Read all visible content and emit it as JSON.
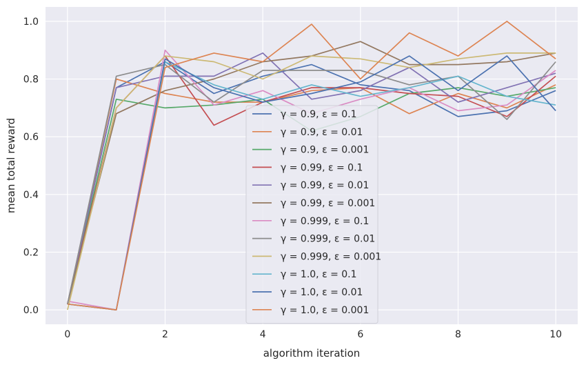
{
  "chart_data": {
    "type": "line",
    "title": "",
    "xlabel": "algorithm iteration",
    "ylabel": "mean total reward",
    "xlim": [
      -0.45,
      10.45
    ],
    "ylim": [
      -0.05,
      1.05
    ],
    "xticks": [
      0,
      2,
      4,
      6,
      8,
      10
    ],
    "yticks": [
      0.0,
      0.2,
      0.4,
      0.6,
      0.8,
      1.0
    ],
    "xtick_labels": [
      "0",
      "2",
      "4",
      "6",
      "8",
      "10"
    ],
    "ytick_labels": [
      "0.0",
      "0.2",
      "0.4",
      "0.6",
      "0.8",
      "1.0"
    ],
    "grid": true,
    "legend_position": "center",
    "x": [
      0,
      1,
      2,
      3,
      4,
      5,
      6,
      7,
      8,
      9,
      10
    ],
    "series": [
      {
        "name": "γ = 0.9, ε = 0.1",
        "color": "#4c72b0",
        "values": [
          0.02,
          0.77,
          0.86,
          0.75,
          0.81,
          0.85,
          0.78,
          0.76,
          0.67,
          0.69,
          0.76
        ]
      },
      {
        "name": "γ = 0.9, ε = 0.01",
        "color": "#dd8452",
        "values": [
          0.02,
          0.8,
          0.75,
          0.72,
          0.72,
          0.76,
          0.77,
          0.68,
          0.75,
          0.7,
          0.78
        ]
      },
      {
        "name": "γ = 0.9, ε = 0.001",
        "color": "#55a868",
        "values": [
          0.02,
          0.73,
          0.7,
          0.71,
          0.73,
          0.62,
          0.67,
          0.75,
          0.77,
          0.74,
          0.77
        ]
      },
      {
        "name": "γ = 0.99, ε = 0.1",
        "color": "#c44e52",
        "values": [
          0.02,
          0.7,
          0.88,
          0.64,
          0.72,
          0.77,
          0.77,
          0.75,
          0.74,
          0.67,
          0.81
        ]
      },
      {
        "name": "γ = 0.99, ε = 0.01",
        "color": "#8172b3",
        "values": [
          0.02,
          0.77,
          0.81,
          0.81,
          0.89,
          0.73,
          0.76,
          0.84,
          0.72,
          0.77,
          0.82
        ]
      },
      {
        "name": "γ = 0.99, ε = 0.001",
        "color": "#937860",
        "values": [
          0.02,
          0.68,
          0.76,
          0.8,
          0.86,
          0.88,
          0.93,
          0.85,
          0.85,
          0.86,
          0.89
        ]
      },
      {
        "name": "γ = 0.999, ε = 0.1",
        "color": "#da8bc3",
        "values": [
          0.03,
          0.0,
          0.9,
          0.71,
          0.76,
          0.68,
          0.73,
          0.77,
          0.69,
          0.71,
          0.83
        ]
      },
      {
        "name": "γ = 0.999, ε = 0.01",
        "color": "#8c8c8c",
        "values": [
          0.02,
          0.81,
          0.85,
          0.72,
          0.83,
          0.83,
          0.83,
          0.78,
          0.81,
          0.66,
          0.86
        ]
      },
      {
        "name": "γ = 0.999, ε = 0.001",
        "color": "#ccb974",
        "values": [
          0.0,
          0.7,
          0.88,
          0.86,
          0.8,
          0.88,
          0.87,
          0.84,
          0.87,
          0.89,
          0.89
        ]
      },
      {
        "name": "γ = 1.0, ε = 0.1",
        "color": "#64b5cd",
        "values": [
          0.02,
          0.0,
          0.86,
          0.78,
          0.73,
          0.78,
          0.74,
          0.77,
          0.81,
          0.74,
          0.71
        ]
      },
      {
        "name": "γ = 1.0, ε = 0.01",
        "color": "#4c72b0",
        "values": [
          0.02,
          0.0,
          0.87,
          0.77,
          0.72,
          0.75,
          0.79,
          0.88,
          0.76,
          0.88,
          0.69
        ]
      },
      {
        "name": "γ = 1.0, ε = 0.001",
        "color": "#dd8452",
        "values": [
          0.02,
          0.0,
          0.84,
          0.89,
          0.86,
          0.99,
          0.8,
          0.96,
          0.88,
          1.0,
          0.87
        ]
      }
    ]
  }
}
